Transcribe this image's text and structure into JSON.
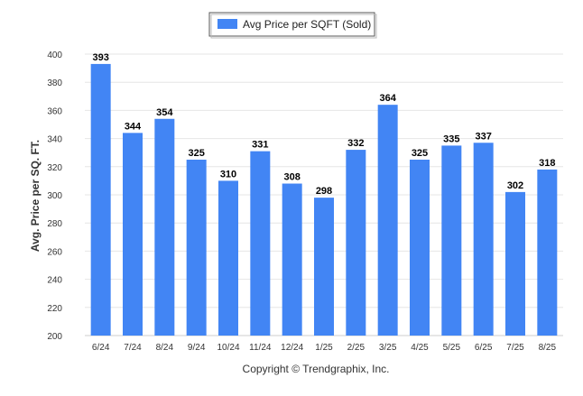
{
  "chart_data": {
    "type": "bar",
    "title": "",
    "xlabel": "",
    "ylabel": "Avg. Price per SQ. FT.",
    "categories": [
      "6/24",
      "7/24",
      "8/24",
      "9/24",
      "10/24",
      "11/24",
      "12/24",
      "1/25",
      "2/25",
      "3/25",
      "4/25",
      "5/25",
      "6/25",
      "7/25",
      "8/25"
    ],
    "series": [
      {
        "name": "Avg Price per SQFT (Sold)",
        "values": [
          393,
          344,
          354,
          325,
          310,
          331,
          308,
          298,
          332,
          364,
          325,
          335,
          337,
          302,
          318
        ]
      }
    ],
    "ylim": [
      200,
      400
    ],
    "yticks": [
      200,
      220,
      240,
      260,
      280,
      300,
      320,
      340,
      360,
      380,
      400
    ],
    "grid": true,
    "legend_position": "top-center",
    "data_labels": true,
    "colors": {
      "bar": "#4285f4",
      "grid": "#e6e6e6",
      "axis_text": "#333333"
    }
  },
  "footer": {
    "copyright": "Copyright © Trendgraphix, Inc."
  }
}
